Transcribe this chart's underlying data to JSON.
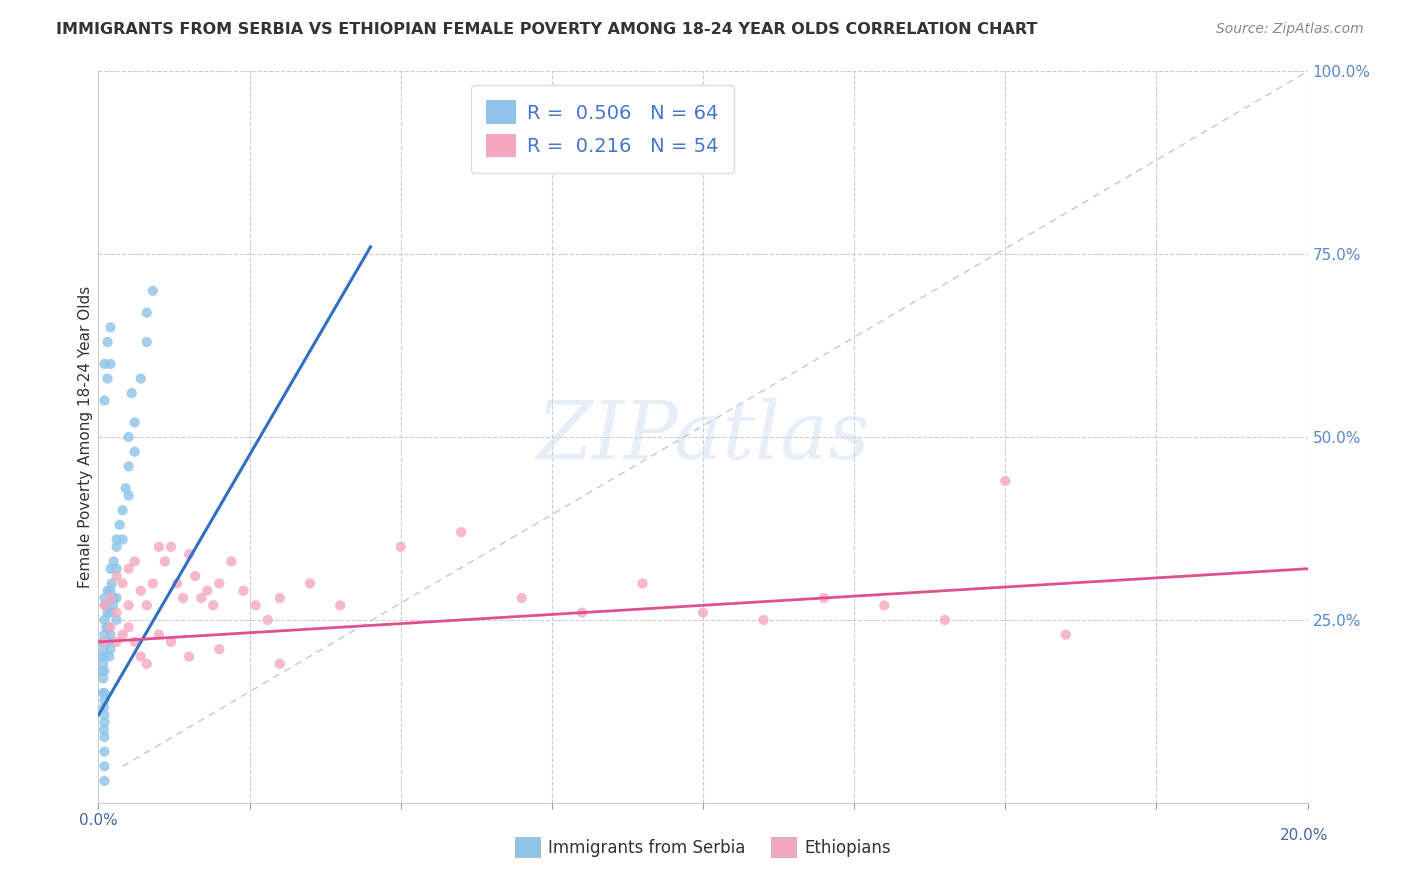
{
  "title": "IMMIGRANTS FROM SERBIA VS ETHIOPIAN FEMALE POVERTY AMONG 18-24 YEAR OLDS CORRELATION CHART",
  "source": "Source: ZipAtlas.com",
  "ylabel": "Female Poverty Among 18-24 Year Olds",
  "legend_label1": "Immigrants from Serbia",
  "legend_label2": "Ethiopians",
  "r1": "0.506",
  "n1": "64",
  "r2": "0.216",
  "n2": "54",
  "color_serbia": "#8ec4e8",
  "color_ethiopia": "#f4a8c0",
  "color_line_serbia": "#3070c0",
  "color_line_ethiopia": "#e05090",
  "color_diagonal": "#c0c8d8",
  "background_color": "#ffffff",
  "watermark": "ZIPatlas",
  "serbia_x": [
    0.0005,
    0.0006,
    0.0007,
    0.0008,
    0.0009,
    0.001,
    0.001,
    0.001,
    0.001,
    0.001,
    0.001,
    0.001,
    0.0012,
    0.0013,
    0.0014,
    0.0015,
    0.0015,
    0.0016,
    0.0017,
    0.0018,
    0.002,
    0.002,
    0.002,
    0.002,
    0.002,
    0.0022,
    0.0024,
    0.0025,
    0.0025,
    0.003,
    0.003,
    0.003,
    0.003,
    0.0035,
    0.004,
    0.004,
    0.0045,
    0.005,
    0.005,
    0.006,
    0.006,
    0.007,
    0.008,
    0.009,
    0.001,
    0.001,
    0.0015,
    0.0015,
    0.002,
    0.002,
    0.001,
    0.001,
    0.001,
    0.001,
    0.001,
    0.001,
    0.0008,
    0.0008,
    0.0009,
    0.0009,
    0.003,
    0.005,
    0.0055,
    0.008
  ],
  "serbia_y": [
    0.2,
    0.18,
    0.22,
    0.19,
    0.21,
    0.28,
    0.25,
    0.23,
    0.2,
    0.18,
    0.15,
    0.12,
    0.27,
    0.24,
    0.22,
    0.29,
    0.26,
    0.24,
    0.22,
    0.2,
    0.32,
    0.29,
    0.26,
    0.23,
    0.21,
    0.3,
    0.27,
    0.33,
    0.28,
    0.35,
    0.32,
    0.28,
    0.25,
    0.38,
    0.4,
    0.36,
    0.43,
    0.46,
    0.42,
    0.52,
    0.48,
    0.58,
    0.63,
    0.7,
    0.6,
    0.55,
    0.63,
    0.58,
    0.65,
    0.6,
    0.14,
    0.11,
    0.09,
    0.07,
    0.05,
    0.03,
    0.17,
    0.15,
    0.13,
    0.1,
    0.36,
    0.5,
    0.56,
    0.67
  ],
  "ethiopia_x": [
    0.001,
    0.001,
    0.002,
    0.002,
    0.003,
    0.003,
    0.004,
    0.005,
    0.005,
    0.006,
    0.007,
    0.008,
    0.009,
    0.01,
    0.011,
    0.012,
    0.013,
    0.014,
    0.015,
    0.016,
    0.017,
    0.018,
    0.019,
    0.02,
    0.022,
    0.024,
    0.026,
    0.028,
    0.03,
    0.035,
    0.04,
    0.05,
    0.06,
    0.07,
    0.08,
    0.09,
    0.1,
    0.11,
    0.12,
    0.13,
    0.14,
    0.15,
    0.16,
    0.003,
    0.004,
    0.005,
    0.006,
    0.007,
    0.008,
    0.01,
    0.012,
    0.015,
    0.02,
    0.03
  ],
  "ethiopia_y": [
    0.27,
    0.22,
    0.28,
    0.24,
    0.31,
    0.26,
    0.3,
    0.32,
    0.27,
    0.33,
    0.29,
    0.27,
    0.3,
    0.35,
    0.33,
    0.35,
    0.3,
    0.28,
    0.34,
    0.31,
    0.28,
    0.29,
    0.27,
    0.3,
    0.33,
    0.29,
    0.27,
    0.25,
    0.28,
    0.3,
    0.27,
    0.35,
    0.37,
    0.28,
    0.26,
    0.3,
    0.26,
    0.25,
    0.28,
    0.27,
    0.25,
    0.44,
    0.23,
    0.22,
    0.23,
    0.24,
    0.22,
    0.2,
    0.19,
    0.23,
    0.22,
    0.2,
    0.21,
    0.19
  ],
  "xlim": [
    0.0,
    0.2
  ],
  "ylim": [
    0.0,
    1.0
  ],
  "serbia_line_x0": 0.0,
  "serbia_line_y0": 0.12,
  "serbia_line_x1": 0.045,
  "serbia_line_y1": 0.76,
  "ethiopia_line_x0": 0.0,
  "ethiopia_line_y0": 0.22,
  "ethiopia_line_x1": 0.2,
  "ethiopia_line_y1": 0.32
}
